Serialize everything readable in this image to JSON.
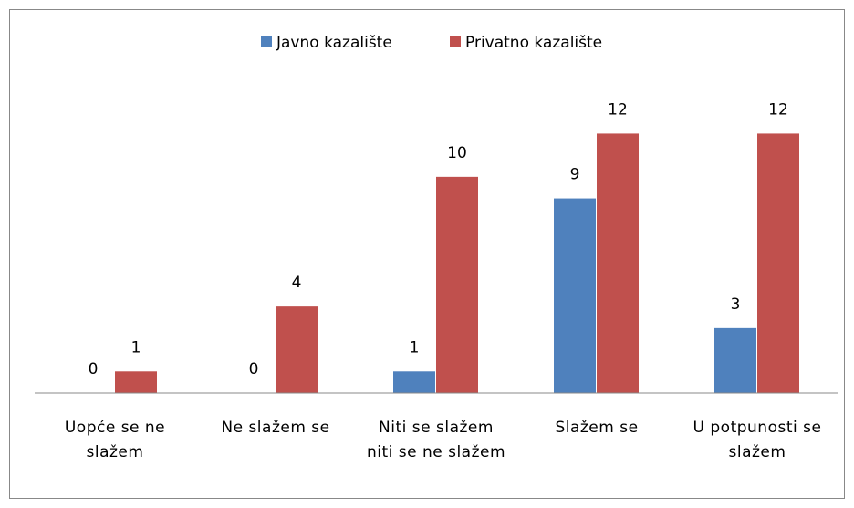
{
  "chart_data": {
    "type": "bar",
    "categories": [
      "Uopće se ne slažem",
      "Ne slažem se",
      "Niti se slažem niti se ne slažem",
      "Slažem se",
      "U potpunosti se slažem"
    ],
    "series": [
      {
        "name": "Javno kazalište",
        "color": "#4f81bd",
        "values": [
          0,
          0,
          1,
          9,
          3
        ]
      },
      {
        "name": "Privatno kazalište",
        "color": "#c0504d",
        "values": [
          1,
          4,
          10,
          12,
          12
        ]
      }
    ],
    "ylim": [
      0,
      14
    ],
    "legend": "top"
  }
}
